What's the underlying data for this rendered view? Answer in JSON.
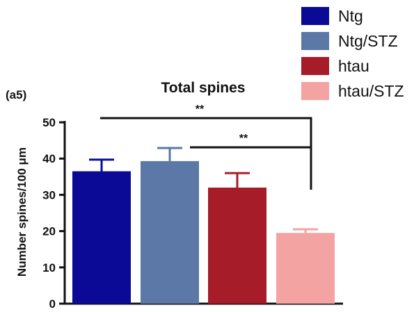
{
  "panel_label": "(a5)",
  "chart_data": {
    "type": "bar",
    "title": "Total spines",
    "ylabel": "Number spines/100 μm",
    "xlabel": "",
    "ylim": [
      0,
      50
    ],
    "yticks": [
      0,
      10,
      20,
      30,
      40,
      50
    ],
    "categories": [
      "Ntg",
      "Ntg/STZ",
      "htau",
      "htau/STZ"
    ],
    "values": [
      36.5,
      39.3,
      32.0,
      19.5
    ],
    "errors": [
      3.2,
      3.6,
      4.0,
      1.0
    ],
    "colors": [
      "#0a0a96",
      "#5b78a6",
      "#a61c28",
      "#f4a3a3"
    ],
    "legend": {
      "placement": "top-right",
      "entries": [
        "Ntg",
        "Ntg/STZ",
        "htau",
        "htau/STZ"
      ]
    },
    "annotations": [
      {
        "text": "**",
        "from": "Ntg",
        "to": "htau/STZ"
      },
      {
        "text": "**",
        "from": "Ntg/STZ",
        "to": "htau/STZ"
      }
    ],
    "grid": false
  }
}
